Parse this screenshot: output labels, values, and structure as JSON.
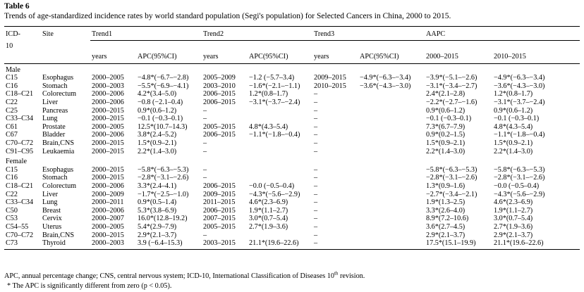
{
  "label": "Table 6",
  "title": "Trends of age-standardized incidence rates by world standard population (Segi's population) for Selected Cancers in China, 2000 to 2015.",
  "headers": {
    "icd": "ICD-",
    "icd2": "10",
    "site": "Site",
    "trend1": "Trend1",
    "trend2": "Trend2",
    "trend3": "Trend3",
    "aapc": "AAPC",
    "years": "years",
    "apc": "APC(95%CI)",
    "aapc_period1": "2000–2015",
    "aapc_period2": "2010–2015"
  },
  "groups": [
    {
      "name": "Male",
      "rows": [
        [
          "C15",
          "Esophagus",
          "2000–2005",
          "−4.8*(−6.7–−2.8)",
          "2005–2009",
          "−1.2 (−5.7–3.4)",
          "2009–2015",
          "−4.9*(−6.3–−3.4)",
          "−3.9*(−5.1–−2.6)",
          "−4.9*(−6.3–−3.4)"
        ],
        [
          "C16",
          "Stomach",
          "2000–2003",
          "−5.5*(−6.9–−4.1)",
          "2003–2010",
          "−1.6*(−2.1–−1.1)",
          "2010–2015",
          "−3.6*(−4.3–−3.0)",
          "−3.1*(−3.4–−2.7)",
          "−3.6*(−4.3–−3.0)"
        ],
        [
          "C18–C21",
          "Colorectum",
          "2000–2006",
          "4.2*(3.4–5.0)",
          "2006–2015",
          "1.2*(0.8–1.7)",
          "–",
          "",
          "2.4*(2.1–2.8)",
          "1.2*(0.8–1.7)"
        ],
        [
          "C22",
          "Liver",
          "2000–2006",
          "−0.8 (−2.1–0.4)",
          "2006–2015",
          "−3.1*(−3.7–−2.4)",
          "–",
          "",
          "−2.2*(−2.7–−1.6)",
          "−3.1*(−3.7–−2.4)"
        ],
        [
          "C25",
          "Pancreas",
          "2000–2015",
          "0.9*(0.6–1.2)",
          "–",
          "",
          "–",
          "",
          "0.9*(0.6–1.2)",
          "0.9*(0.6–1.2)"
        ],
        [
          "C33–C34",
          "Lung",
          "2000–2015",
          "−0.1 (−0.3–0.1)",
          "–",
          "",
          "–",
          "",
          "−0.1 (−0.3–0.1)",
          "−0.1 (−0.3–0.1)"
        ],
        [
          "C61",
          "Prostate",
          "2000–2005",
          "12.5*(10.7–14.3)",
          "2005–2015",
          "4.8*(4.3–5.4)",
          "–",
          "",
          "7.3*(6.7–7.9)",
          "4.8*(4.3–5.4)"
        ],
        [
          "C67",
          "Bladder",
          "2000–2006",
          "3.8*(2.4–5.2)",
          "2006–2015",
          "−1.1*(−1.8–−0.4)",
          "–",
          "",
          "0.9*(0.2–1.5)",
          "−1.1*(−1.8–−0.4)"
        ],
        [
          "C70–C72",
          "Brain,CNS",
          "2000–2015",
          "1.5*(0.9–2.1)",
          "–",
          "",
          "–",
          "",
          "1.5*(0.9–2.1)",
          "1.5*(0.9–2.1)"
        ],
        [
          "C91–C95",
          "Leukaemia",
          "2000–2015",
          "2.2*(1.4–3.0)",
          "–",
          "",
          "–",
          "",
          "2.2*(1.4–3.0)",
          "2.2*(1.4–3.0)"
        ]
      ]
    },
    {
      "name": "Female",
      "rows": [
        [
          "C15",
          "Esophagus",
          "2000–2015",
          "−5.8*(−6.3–−5.3)",
          "–",
          "",
          "–",
          "",
          "−5.8*(−6.3–−5.3)",
          "−5.8*(−6.3–−5.3)"
        ],
        [
          "C16",
          "Stomach",
          "2000–2015",
          "−2.8*(−3.1–−2.6)",
          "–",
          "",
          "–",
          "",
          "−2.8*(−3.1–−2.6)",
          "−2.8*(−3.1–−2.6)"
        ],
        [
          "C18–C21",
          "Colorectum",
          "2000–2006",
          "3.3*(2.4–4.1)",
          "2006–2015",
          "−0.0 (−0.5–0.4)",
          "–",
          "",
          "1.3*(0.9–1.6)",
          "−0.0 (−0.5–0.4)"
        ],
        [
          "C22",
          "Liver",
          "2000–2009",
          "−1.7*(−2.5–−1.0)",
          "2009–2015",
          "−4.3*(−5.6–−2.9)",
          "–",
          "",
          "−2.7*(−3.4–−2.1)",
          "−4.3*(−5.6–−2.9)"
        ],
        [
          "C33–C34",
          "Lung",
          "2000–2011",
          "0.9*(0.5–1.4)",
          "2011–2015",
          "4.6*(2.3–6.9)",
          "–",
          "",
          "1.9*(1.3–2.5)",
          "4.6*(2.3–6.9)"
        ],
        [
          "C50",
          "Breast",
          "2000–2006",
          "5.3*(3.8–6.9)",
          "2006–2015",
          "1.9*(1.1–2.7)",
          "–",
          "",
          "3.3*(2.6–4.0)",
          "1.9*(1.1–2.7)"
        ],
        [
          "C53",
          "Cervix",
          "2000–2007",
          "16.0*(12.8–19.2)",
          "2007–2015",
          "3.0*(0.7–5.4)",
          "–",
          "",
          "8.9*(7.2–10.6)",
          "3.0*(0.7–5.4)"
        ],
        [
          "C54–55",
          "Uterus",
          "2000–2005",
          "5.4*(2.9–7.9)",
          "2005–2015",
          "2.7*(1.9–3.6)",
          "–",
          "",
          "3.6*(2.7–4.5)",
          "2.7*(1.9–3.6)"
        ],
        [
          "C70–C72",
          "Brain,CNS",
          "2000–2015",
          "2.9*(2.1–3.7)",
          "–",
          "",
          "–",
          "",
          "2.9*(2.1–3.7)",
          "2.9*(2.1–3.7)"
        ],
        [
          "C73",
          "Thyroid",
          "2000–2003",
          "3.9 (−6.4–15.3)",
          "2003–2015",
          "21.1*(19.6–22.6)",
          "–",
          "",
          "17.5*(15.1–19.9)",
          "21.1*(19.6–22.6)"
        ]
      ]
    }
  ],
  "footnote1_a": "APC, annual percentage change; CNS, central nervous system; ICD-10, International Classification of Diseases 10",
  "footnote1_sup": "th",
  "footnote1_b": " revision.",
  "footnote2": "* The APC is significantly different from zero (p < 0.05)."
}
